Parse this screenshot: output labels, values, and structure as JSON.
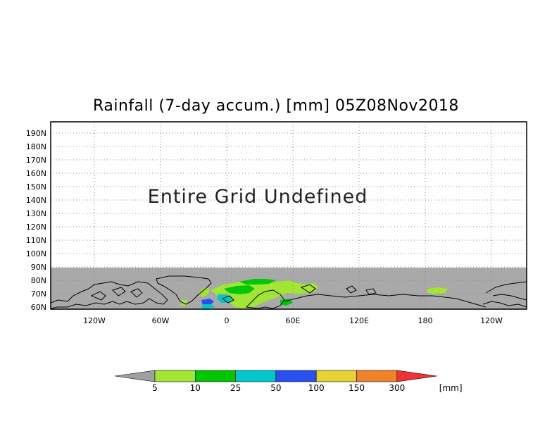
{
  "title": "Rainfall (7-day accum.) [mm] 05Z08Nov2018",
  "undefined_message": "Entire Grid Undefined",
  "lat_labels": [
    "190N",
    "180N",
    "170N",
    "160N",
    "150N",
    "140N",
    "130N",
    "120N",
    "110N",
    "100N",
    "90N",
    "80N",
    "70N",
    "60N"
  ],
  "lon_labels": [
    "120W",
    "60W",
    "0",
    "60E",
    "120E",
    "180",
    "120W"
  ],
  "colorbar": {
    "labels": [
      "5",
      "10",
      "25",
      "50",
      "100",
      "150",
      "300"
    ],
    "unit": "[mm]",
    "colors": [
      "#a0a0a0",
      "#a0e632",
      "#00c800",
      "#00c8c8",
      "#2850f0",
      "#e6d232",
      "#f08228",
      "#f03232"
    ]
  },
  "colors": {
    "no_data": "#a9a9a9",
    "coastline": "#000000",
    "grid": "#8c8c8c",
    "rain_light": "#a0e632",
    "rain_green": "#00c800",
    "rain_cyan": "#00c8c8",
    "rain_blue": "#2850f0"
  }
}
